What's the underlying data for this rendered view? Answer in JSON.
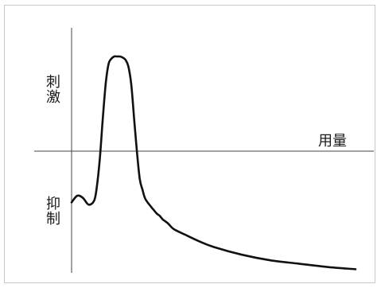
{
  "chart_data": {
    "type": "line",
    "title": "",
    "xlabel": "用量",
    "ylabel_positive": "刺激",
    "ylabel_negative": "抑制",
    "grid": false,
    "legend": "none",
    "xlim": [
      0,
      100
    ],
    "ylim": [
      -100,
      100
    ],
    "series": [
      {
        "x": [
          0,
          2,
          4,
          6,
          8,
          9,
          10,
          11,
          12,
          13,
          14,
          15,
          16,
          17,
          18,
          19,
          20,
          21,
          22,
          23,
          24,
          25,
          26,
          28,
          29,
          30,
          31,
          32,
          33,
          34,
          36,
          40,
          45,
          50,
          60,
          70,
          80,
          90,
          100
        ],
        "y": [
          -46,
          -40,
          -42,
          -48,
          -44,
          -30,
          -5,
          30,
          60,
          78,
          83,
          85,
          85,
          85,
          84,
          82,
          76,
          60,
          30,
          0,
          -25,
          -35,
          -43,
          -50,
          -53,
          -56,
          -58,
          -61,
          -63,
          -65,
          -70,
          -75,
          -81,
          -86,
          -93,
          -98,
          -101,
          -104,
          -106
        ]
      }
    ]
  }
}
